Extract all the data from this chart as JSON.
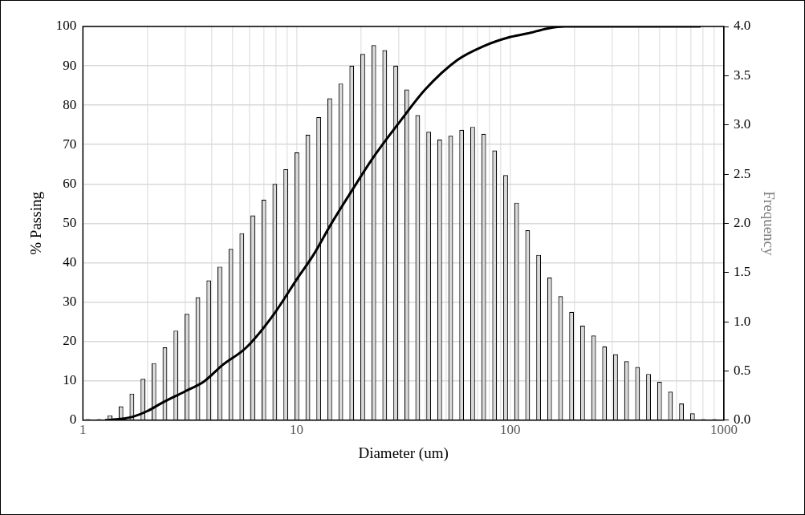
{
  "chart_data": {
    "type": "bar",
    "xlabel": "Diameter (um)",
    "ylabel": "% Passing",
    "y2label": "Frequency",
    "log": "x",
    "grid": true,
    "marker": "none",
    "line_style": "solid",
    "xlim": [
      1,
      1000
    ],
    "xticks": [
      1,
      {
        "value": 2,
        "label": null
      },
      {
        "value": 3,
        "label": null
      },
      {
        "value": 4,
        "label": null
      },
      {
        "value": 5,
        "label": null
      },
      {
        "value": 6,
        "label": null
      },
      {
        "value": 7,
        "label": null
      },
      {
        "value": 8,
        "label": null
      },
      {
        "value": 9,
        "label": null
      },
      10,
      {
        "value": 20,
        "label": null
      },
      {
        "value": 30,
        "label": null
      },
      {
        "value": 40,
        "label": null
      },
      {
        "value": 50,
        "label": null
      },
      {
        "value": 60,
        "label": null
      },
      {
        "value": 70,
        "label": null
      },
      {
        "value": 80,
        "label": null
      },
      {
        "value": 90,
        "label": null
      },
      100,
      {
        "value": 200,
        "label": null
      },
      {
        "value": 300,
        "label": null
      },
      {
        "value": 400,
        "label": null
      },
      {
        "value": 500,
        "label": null
      },
      {
        "value": 600,
        "label": null
      },
      {
        "value": 700,
        "label": null
      },
      {
        "value": 800,
        "label": null
      },
      {
        "value": 900,
        "label": null
      },
      1000
    ],
    "ylim": [
      0,
      100
    ],
    "yticks": [
      0,
      10,
      20,
      30,
      40,
      50,
      60,
      70,
      80,
      90,
      100
    ],
    "y2lim": [
      0,
      4
    ],
    "y2ticks": [
      {
        "value": 0,
        "label": "0.0"
      },
      {
        "value": 0.5,
        "label": "0.5"
      },
      {
        "value": 1,
        "label": "1.0"
      },
      {
        "value": 1.5,
        "label": "1.5"
      },
      {
        "value": 2,
        "label": "2.0"
      },
      {
        "value": 2.5,
        "label": "2.5"
      },
      {
        "value": 3,
        "label": "3.0"
      },
      {
        "value": 3.5,
        "label": "3.5"
      },
      {
        "value": 4,
        "label": "4.0"
      }
    ],
    "series": [
      {
        "axis": "y2",
        "color": "#d9d9d9",
        "x": [
          1.056,
          1.189,
          1.339,
          1.507,
          1.696,
          1.91,
          2.149,
          2.42,
          2.724,
          3.067,
          3.452,
          3.886,
          4.375,
          4.925,
          5.545,
          6.242,
          7.026,
          7.91,
          8.905,
          10.03,
          11.29,
          12.7,
          14.3,
          16.1,
          18.13,
          20.4,
          22.97,
          25.86,
          29.11,
          32.77,
          36.89,
          41.53,
          46.75,
          52.63,
          59.25,
          66.7,
          75.08,
          84.53,
          95.15,
          107.1,
          120.6,
          135.8,
          152.8,
          172.1,
          193.7,
          218.1,
          245.5,
          276.4,
          311.1,
          350.3,
          394.3,
          443.9,
          499.7,
          562.3,
          633.2,
          712.8,
          802.4,
          903.3
        ],
        "values": [
          0.01,
          0.01,
          0.05,
          0.14,
          0.27,
          0.42,
          0.58,
          0.74,
          0.91,
          1.08,
          1.25,
          1.42,
          1.56,
          1.74,
          1.9,
          2.08,
          2.24,
          2.4,
          2.55,
          2.72,
          2.9,
          3.08,
          3.27,
          3.42,
          3.6,
          3.72,
          3.81,
          3.76,
          3.6,
          3.36,
          3.1,
          2.93,
          2.85,
          2.89,
          2.95,
          2.98,
          2.91,
          2.74,
          2.49,
          2.21,
          1.93,
          1.68,
          1.45,
          1.26,
          1.1,
          0.96,
          0.86,
          0.75,
          0.67,
          0.6,
          0.54,
          0.47,
          0.39,
          0.29,
          0.17,
          0.07,
          0.01,
          0.01
        ]
      },
      {
        "type": "line",
        "color": "#000000",
        "x": [
          1.27,
          1.5,
          1.72,
          2,
          2.33,
          3,
          3.68,
          4.5,
          5.8,
          7.85,
          10,
          12,
          14.5,
          18,
          22.7,
          30.6,
          40,
          56.6,
          75,
          98,
          120,
          150,
          180,
          250,
          400,
          778
        ],
        "values": [
          0,
          0.3,
          0.9,
          2.3,
          4.3,
          7.3,
          9.8,
          14,
          18.4,
          27,
          35.7,
          42,
          49.8,
          58,
          66.5,
          76,
          84,
          91.5,
          95,
          97.2,
          98.2,
          99.5,
          100,
          100,
          100,
          100
        ]
      }
    ]
  }
}
